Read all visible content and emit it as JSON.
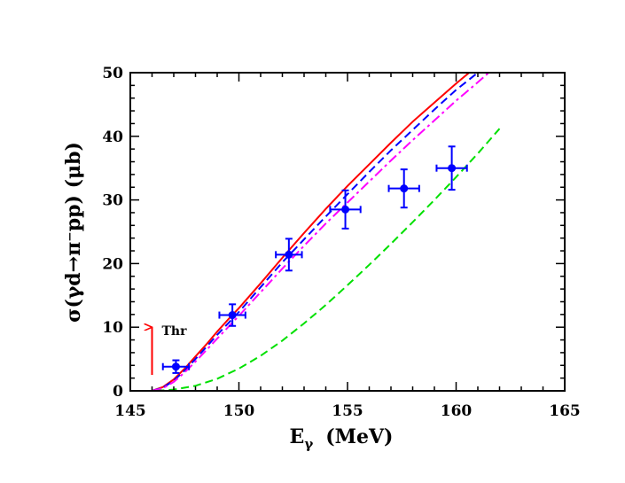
{
  "chart_data": {
    "type": "line",
    "title": "",
    "xlabel": "E",
    "xlabel_sub": "γ",
    "xlabel_unit": "(MeV)",
    "ylabel": "σ(γd→π⁻pp)  (μb)",
    "xlim": [
      145,
      165
    ],
    "ylim": [
      0,
      50
    ],
    "x_ticks": [
      145,
      150,
      155,
      160,
      165
    ],
    "y_ticks": [
      0,
      10,
      20,
      30,
      40,
      50
    ],
    "grid": false,
    "legend": "none",
    "series": [
      {
        "style": "solid",
        "color": "#ff0000",
        "points": [
          [
            146.0,
            0.0
          ],
          [
            146.5,
            0.6
          ],
          [
            147.0,
            1.8
          ],
          [
            147.5,
            3.5
          ],
          [
            148.0,
            5.4
          ],
          [
            148.5,
            7.3
          ],
          [
            149.0,
            9.3
          ],
          [
            149.5,
            11.2
          ],
          [
            150.0,
            13.0
          ],
          [
            151.0,
            16.9
          ],
          [
            152.0,
            20.9
          ],
          [
            153.0,
            24.8
          ],
          [
            154.0,
            28.6
          ],
          [
            155.0,
            32.2
          ],
          [
            156.0,
            35.6
          ],
          [
            157.0,
            39.0
          ],
          [
            158.0,
            42.3
          ],
          [
            159.0,
            45.3
          ],
          [
            160.0,
            48.3
          ],
          [
            160.6,
            50.0
          ]
        ]
      },
      {
        "style": "dashed",
        "color": "#0000ff",
        "points": [
          [
            146.0,
            0.0
          ],
          [
            146.5,
            0.5
          ],
          [
            147.0,
            1.6
          ],
          [
            147.5,
            3.2
          ],
          [
            148.0,
            5.0
          ],
          [
            148.5,
            6.9
          ],
          [
            149.0,
            8.8
          ],
          [
            149.5,
            10.6
          ],
          [
            150.0,
            12.4
          ],
          [
            151.0,
            16.3
          ],
          [
            152.0,
            20.2
          ],
          [
            153.0,
            23.8
          ],
          [
            154.0,
            27.4
          ],
          [
            155.0,
            30.9
          ],
          [
            156.0,
            34.4
          ],
          [
            157.0,
            37.8
          ],
          [
            158.0,
            41.0
          ],
          [
            159.0,
            44.2
          ],
          [
            160.0,
            47.3
          ],
          [
            161.0,
            50.0
          ]
        ]
      },
      {
        "style": "dash-dot",
        "color": "#ff00ff",
        "points": [
          [
            146.0,
            0.0
          ],
          [
            146.5,
            0.4
          ],
          [
            147.0,
            1.4
          ],
          [
            147.5,
            2.9
          ],
          [
            148.0,
            4.6
          ],
          [
            148.5,
            6.4
          ],
          [
            149.0,
            8.2
          ],
          [
            149.5,
            10.0
          ],
          [
            150.0,
            11.8
          ],
          [
            151.0,
            15.5
          ],
          [
            152.0,
            19.2
          ],
          [
            153.0,
            22.8
          ],
          [
            154.0,
            26.3
          ],
          [
            155.0,
            29.6
          ],
          [
            156.0,
            32.9
          ],
          [
            157.0,
            36.2
          ],
          [
            158.0,
            39.4
          ],
          [
            159.0,
            42.5
          ],
          [
            160.0,
            45.6
          ],
          [
            161.0,
            48.5
          ],
          [
            161.5,
            50.0
          ]
        ]
      },
      {
        "style": "dashed",
        "color": "#00e000",
        "points": [
          [
            146.2,
            0.0
          ],
          [
            147.0,
            0.2
          ],
          [
            148.0,
            0.8
          ],
          [
            149.0,
            1.9
          ],
          [
            150.0,
            3.5
          ],
          [
            151.0,
            5.5
          ],
          [
            152.0,
            7.9
          ],
          [
            153.0,
            10.6
          ],
          [
            154.0,
            13.5
          ],
          [
            155.0,
            16.6
          ],
          [
            156.0,
            19.8
          ],
          [
            157.0,
            23.1
          ],
          [
            158.0,
            26.5
          ],
          [
            159.0,
            30.0
          ],
          [
            160.0,
            33.6
          ],
          [
            161.0,
            37.3
          ],
          [
            162.0,
            41.2
          ]
        ]
      }
    ],
    "data_points": [
      {
        "x": 147.1,
        "y": 3.8,
        "xerr": 0.6,
        "yerr": 1.0
      },
      {
        "x": 149.7,
        "y": 11.9,
        "xerr": 0.6,
        "yerr": 1.7
      },
      {
        "x": 152.3,
        "y": 21.4,
        "xerr": 0.6,
        "yerr": 2.5
      },
      {
        "x": 154.9,
        "y": 28.5,
        "xerr": 0.7,
        "yerr": 3.0
      },
      {
        "x": 157.6,
        "y": 31.8,
        "xerr": 0.7,
        "yerr": 3.0
      },
      {
        "x": 159.8,
        "y": 35.0,
        "xerr": 0.7,
        "yerr": 3.4
      }
    ],
    "data_point_color": "#0000ff",
    "annotations": [
      {
        "text": "Thr",
        "arrow_x": 146.0,
        "arrow_y_from": 2.5,
        "arrow_y_to": 10.0,
        "arrow_color": "#ff0000"
      }
    ]
  }
}
